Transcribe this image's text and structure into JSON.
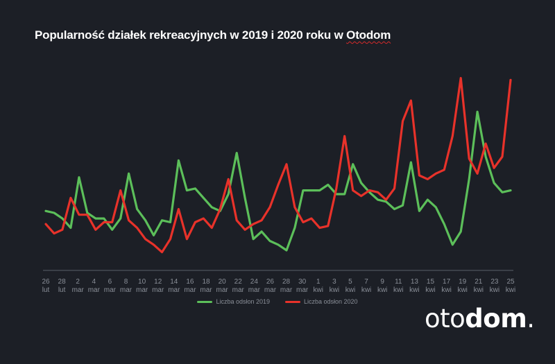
{
  "title_main": "Popularność działek rekreacyjnych w 2019 i 2020 roku w ",
  "title_brand": "Otodom",
  "logo": {
    "part_light": "oto",
    "part_bold": "dom",
    "dot": "."
  },
  "colors": {
    "background": "#1c1f26",
    "series_2019": "#5cbf5a",
    "series_2020": "#e8322a",
    "text": "#8a8f98"
  },
  "chart_data": {
    "type": "line",
    "title": "Popularność działek rekreacyjnych w 2019 i 2020 roku w Otodom",
    "xlabel": "",
    "ylabel": "",
    "grid": false,
    "legend_position": "bottom",
    "x_ticks": [
      {
        "top": "26",
        "bottom": "lut"
      },
      {
        "top": "28",
        "bottom": "lut"
      },
      {
        "top": "2",
        "bottom": "mar"
      },
      {
        "top": "4",
        "bottom": "mar"
      },
      {
        "top": "6",
        "bottom": "mar"
      },
      {
        "top": "8",
        "bottom": "mar"
      },
      {
        "top": "10",
        "bottom": "mar"
      },
      {
        "top": "12",
        "bottom": "mar"
      },
      {
        "top": "14",
        "bottom": "mar"
      },
      {
        "top": "16",
        "bottom": "mar"
      },
      {
        "top": "18",
        "bottom": "mar"
      },
      {
        "top": "20",
        "bottom": "mar"
      },
      {
        "top": "22",
        "bottom": "mar"
      },
      {
        "top": "24",
        "bottom": "mar"
      },
      {
        "top": "26",
        "bottom": "mar"
      },
      {
        "top": "28",
        "bottom": "mar"
      },
      {
        "top": "30",
        "bottom": "mar"
      },
      {
        "top": "1",
        "bottom": "kwi"
      },
      {
        "top": "3",
        "bottom": "kwi"
      },
      {
        "top": "5",
        "bottom": "kwi"
      },
      {
        "top": "7",
        "bottom": "kwi"
      },
      {
        "top": "9",
        "bottom": "kwi"
      },
      {
        "top": "11",
        "bottom": "kwi"
      },
      {
        "top": "13",
        "bottom": "kwi"
      },
      {
        "top": "15",
        "bottom": "kwi"
      },
      {
        "top": "17",
        "bottom": "kwi"
      },
      {
        "top": "19",
        "bottom": "kwi"
      },
      {
        "top": "21",
        "bottom": "kwi"
      },
      {
        "top": "23",
        "bottom": "kwi"
      },
      {
        "top": "25",
        "bottom": "kwi"
      }
    ],
    "ylim": [
      0,
      100
    ],
    "series": [
      {
        "name": "Liczba odsłon 2019",
        "values": [
          31,
          30,
          27,
          22,
          49,
          30,
          27,
          27,
          21,
          27,
          51,
          32,
          26,
          18,
          26,
          25,
          58,
          42,
          43,
          38,
          33,
          31,
          40,
          62,
          38,
          16,
          20,
          15,
          13,
          10,
          22,
          42,
          42,
          42,
          45,
          40,
          40,
          56,
          46,
          41,
          37,
          36,
          32,
          34,
          57,
          31,
          37,
          33,
          24,
          13,
          20,
          48,
          84,
          60,
          46,
          41,
          42
        ]
      },
      {
        "name": "Liczba odsłon 2020",
        "values": [
          24,
          19,
          21,
          38,
          29,
          29,
          21,
          25,
          25,
          42,
          26,
          22,
          16,
          13,
          9,
          16,
          32,
          16,
          25,
          27,
          22,
          32,
          48,
          26,
          21,
          24,
          26,
          33,
          45,
          56,
          33,
          25,
          27,
          22,
          23,
          43,
          71,
          42,
          39,
          42,
          41,
          37,
          43,
          79,
          90,
          50,
          48,
          51,
          53,
          71,
          102,
          59,
          51,
          67,
          54,
          60,
          101
        ]
      }
    ]
  },
  "legend": {
    "label_2019": "Liczba odsłon 2019",
    "label_2020": "Liczba odsłon 2020"
  }
}
